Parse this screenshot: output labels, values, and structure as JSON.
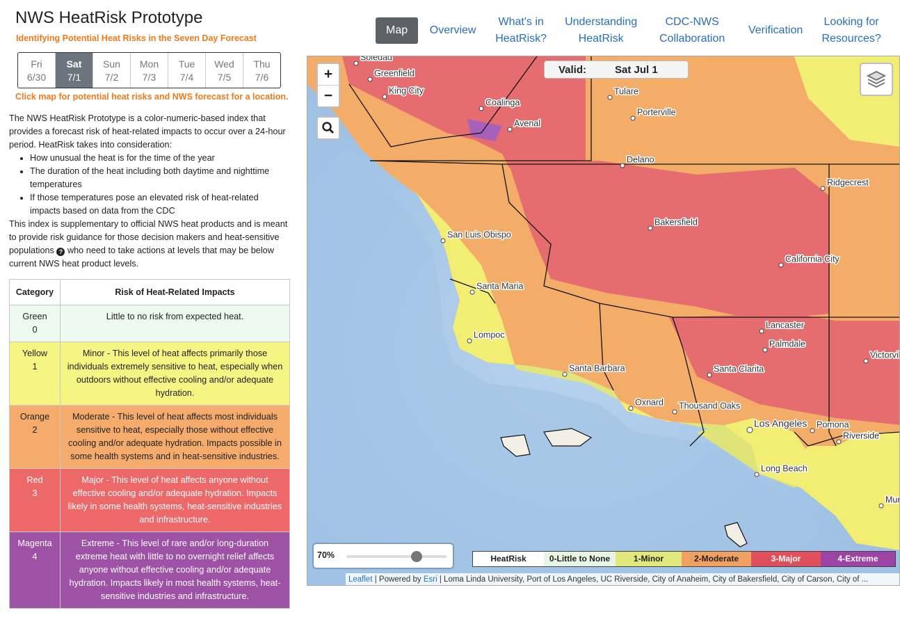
{
  "header": {
    "title": "NWS HeatRisk Prototype",
    "subtitle": "Identifying Potential Heat Risks in the Seven Day Forecast"
  },
  "nav": [
    {
      "label": "Map",
      "active": true
    },
    {
      "label": "Overview"
    },
    {
      "label": "What's in HeatRisk?"
    },
    {
      "label": "Understanding HeatRisk"
    },
    {
      "label": "CDC-NWS Collaboration"
    },
    {
      "label": "Verification"
    },
    {
      "label": "Looking for Resources?"
    }
  ],
  "days": [
    {
      "day": "Fri",
      "date": "6/30"
    },
    {
      "day": "Sat",
      "date": "7/1",
      "selected": true
    },
    {
      "day": "Sun",
      "date": "7/2"
    },
    {
      "day": "Mon",
      "date": "7/3"
    },
    {
      "day": "Tue",
      "date": "7/4"
    },
    {
      "day": "Wed",
      "date": "7/5"
    },
    {
      "day": "Thu",
      "date": "7/6"
    }
  ],
  "instruction": "Click map for potential heat risks and NWS forecast for a location.",
  "description": {
    "intro": "The NWS HeatRisk Prototype is a color-numeric-based index that provides a forecast risk of heat-related impacts to occur over a 24-hour period. HeatRisk takes into consideration:",
    "bullets": [
      "How unusual the heat is for the time of the year",
      "The duration of the heat including both daytime and nighttime temperatures",
      "If those temperatures pose an elevated risk of heat-related impacts based on data from the CDC"
    ],
    "closing_before_icon": "This index is supplementary to official NWS heat products and is meant to provide risk guidance for those decision makers and heat-sensitive populations",
    "closing_after_icon": "who need to take actions at levels that may be below current NWS heat product levels."
  },
  "table": {
    "headers": [
      "Category",
      "Risk of Heat-Related Impacts"
    ],
    "rows": [
      {
        "category": "Green",
        "level": "0",
        "risk": "Little to no risk from expected heat.",
        "color": "#eefaee",
        "text_color": "#222222"
      },
      {
        "category": "Yellow",
        "level": "1",
        "risk": "Minor - This level of heat affects primarily those individuals extremely sensitive to heat, especially when outdoors without effective cooling and/or adequate hydration.",
        "color": "#f5f584",
        "text_color": "#222222"
      },
      {
        "category": "Orange",
        "level": "2",
        "risk": "Moderate - This level of heat affects most individuals sensitive to heat, especially those without effective cooling and/or adequate hydration. Impacts possible in some health systems and in heat-sensitive industries.",
        "color": "#f5ab6c",
        "text_color": "#222222"
      },
      {
        "category": "Red",
        "level": "3",
        "risk": "Major - This level of heat affects anyone without effective cooling and/or adequate hydration. Impacts likely in some health systems, heat-sensitive industries and infrastructure.",
        "color": "#ec6869",
        "text_color": "#ffffff"
      },
      {
        "category": "Magenta",
        "level": "4",
        "risk": "Extreme - This level of rare and/or long-duration extreme heat with little to no overnight relief affects anyone without effective cooling and/or adequate hydration. Impacts likely in most health systems, heat-sensitive industries and infrastructure.",
        "color": "#9d52a6",
        "text_color": "#ffffff"
      }
    ]
  },
  "map": {
    "valid_label": "Valid:",
    "valid_date": "Sat Jul 1",
    "zoom_in": "+",
    "zoom_out": "−",
    "opacity": {
      "value": 70,
      "label": "70%"
    },
    "cities": [
      "Soledad",
      "Greenfield",
      "King City",
      "Coalinga",
      "Avenal",
      "Tulare",
      "Porterville",
      "Delano",
      "Ridgecrest",
      "Bakersfield",
      "San Luis Obispo",
      "California City",
      "Santa Maria",
      "Lancaster",
      "Palmdale",
      "Lompoc",
      "Santa Barbara",
      "Santa Clarita",
      "Victorville",
      "Oxnard",
      "Thousand Oaks",
      "Los Angeles",
      "Pomona",
      "Riverside",
      "Long Beach",
      "Murrieta"
    ],
    "legend": {
      "title": "HeatRisk",
      "items": [
        {
          "label": "0-Little to None",
          "color": "#e6f5e4",
          "text_color": "#222222"
        },
        {
          "label": "1-Minor",
          "color": "#e3e87b",
          "text_color": "#222222"
        },
        {
          "label": "2-Moderate",
          "color": "#f0a060",
          "text_color": "#222222"
        },
        {
          "label": "3-Major",
          "color": "#e0505a",
          "text_color": "#ffffff"
        },
        {
          "label": "4-Extreme",
          "color": "#9c44a6",
          "text_color": "#ffffff"
        }
      ]
    },
    "attribution": {
      "leaflet": "Leaflet",
      "powered": "| Powered by",
      "esri": "Esri",
      "sources": "| Loma Linda University, Port of Los Angeles, UC Riverside, City of Anaheim, City of Bakersfield, City of Carson, City of ..."
    }
  }
}
